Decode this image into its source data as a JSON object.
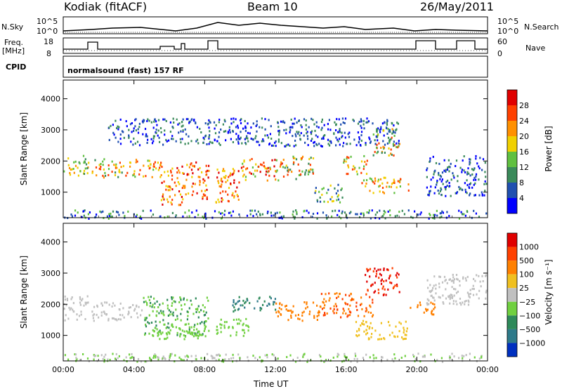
{
  "header": {
    "station": "Kodiak (fitACF)",
    "beam": "Beam 10",
    "date": "26/May/2011"
  },
  "side_labels": {
    "nsky": "N.Sky",
    "freq": "Freq.",
    "freq_unit": "[MHz]",
    "cpid": "CPID",
    "nsearch": "N.Search",
    "nave": "Nave",
    "ten5": "10^5",
    "ten0": "10^0",
    "freq_top": "18",
    "freq_bot": "8",
    "nave_top": "60",
    "nave_bot": "0"
  },
  "cpid_text": "normalsound (fast) 157 RF",
  "chart_data": [
    {
      "type": "heatmap",
      "title": "",
      "xlabel": "Time UT",
      "ylabel": "Slant Range [km]",
      "x_ticks": [
        "00:00",
        "04:00",
        "08:00",
        "12:00",
        "16:00",
        "20:00",
        "00:00"
      ],
      "y_ticks": [
        "1000",
        "2000",
        "3000",
        "4000"
      ],
      "ylim": [
        180,
        4600
      ],
      "colorbar_label": "Power [dB]",
      "colorbar_ticks": [
        "4",
        "8",
        "12",
        "16",
        "20",
        "24",
        "28"
      ],
      "colors": [
        "#0000ff",
        "#2050b0",
        "#3a8a5a",
        "#60c040",
        "#f0d000",
        "#ff9000",
        "#ff4000",
        "#e00000"
      ]
    },
    {
      "type": "heatmap",
      "title": "",
      "xlabel": "Time UT",
      "ylabel": "Slant Range [km]",
      "x_ticks": [
        "00:00",
        "04:00",
        "08:00",
        "12:00",
        "16:00",
        "20:00",
        "00:00"
      ],
      "y_ticks": [
        "1000",
        "2000",
        "3000",
        "4000"
      ],
      "ylim": [
        180,
        4600
      ],
      "colorbar_label": "Velocity [m s⁻¹]",
      "colorbar_ticks": [
        "1000",
        "500",
        "100",
        "25",
        "−25",
        "−100",
        "−500",
        "−1000"
      ],
      "colors": [
        "#0030c0",
        "#2e7a8a",
        "#2e8a5a",
        "#70d040",
        "#c0c0c0",
        "#f0c020",
        "#ff8000",
        "#ff4000",
        "#e00000"
      ]
    }
  ],
  "xaxis_label": "Time UT"
}
